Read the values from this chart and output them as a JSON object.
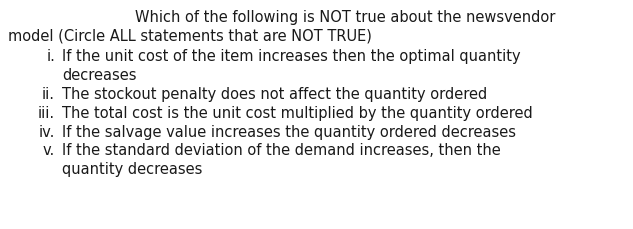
{
  "background_color": "#ffffff",
  "text_color": "#1a1a1a",
  "title_line1": "Which of the following is NOT true about the newsvendor",
  "title_line2": "model (Circle ALL statements that are NOT TRUE)",
  "items": [
    {
      "label": "i.",
      "line1": "If the unit cost of the item increases then the optimal quantity",
      "line2": "decreases"
    },
    {
      "label": "ii.",
      "line1": "The stockout penalty does not affect the quantity ordered",
      "line2": null
    },
    {
      "label": "iii.",
      "line1": "The total cost is the unit cost multiplied by the quantity ordered",
      "line2": null
    },
    {
      "label": "iv.",
      "line1": "If the salvage value increases the quantity ordered decreases",
      "line2": null
    },
    {
      "label": "v.",
      "line1": "If the standard deviation of the demand increases, then the",
      "line2": "quantity decreases"
    }
  ],
  "font_size": 10.5,
  "font_family": "DejaVu Sans",
  "fig_width": 6.33,
  "fig_height": 2.3,
  "dpi": 100
}
